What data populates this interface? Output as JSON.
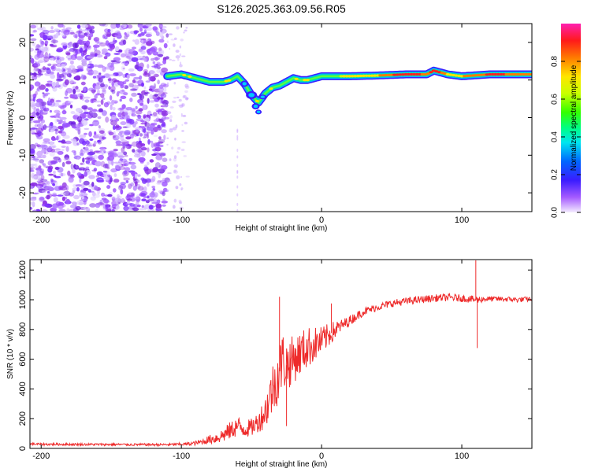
{
  "title": "S126.2025.363.09.56.R05",
  "chart_data": [
    {
      "type": "heatmap",
      "name": "spectrogram",
      "xlabel": "Height of straight line (km)",
      "ylabel": "Frequency (Hz)",
      "xlim": [
        -208,
        150
      ],
      "ylim": [
        -25,
        25
      ],
      "xticks": [
        -200,
        -100,
        0,
        100
      ],
      "yticks": [
        -20,
        -10,
        0,
        10,
        20
      ],
      "noise_region_x": [
        -208,
        -110
      ],
      "sparse_noise_x": [
        -110,
        -95
      ],
      "tone_ridge": {
        "x": [
          -110,
          -100,
          -95,
          -90,
          -85,
          -80,
          -75,
          -70,
          -65,
          -60,
          -55,
          -50,
          -45,
          -40,
          -35,
          -30,
          -25,
          -20,
          -15,
          -10,
          -5,
          0,
          20,
          40,
          60,
          75,
          80,
          90,
          100,
          120,
          150
        ],
        "freq": [
          11,
          11.5,
          11,
          10.5,
          10,
          9.5,
          9.5,
          9.5,
          10,
          11,
          9,
          6,
          4,
          6.5,
          8,
          8.5,
          9.5,
          10.5,
          10,
          10,
          10.5,
          11,
          11,
          11.2,
          11.5,
          11.5,
          12.5,
          11.5,
          11,
          11.5,
          11.5
        ],
        "amplitude": [
          0.2,
          0.35,
          0.3,
          0.3,
          0.3,
          0.25,
          0.35,
          0.3,
          0.25,
          0.3,
          0.35,
          0.3,
          0.3,
          0.35,
          0.35,
          0.4,
          0.45,
          0.45,
          0.45,
          0.45,
          0.5,
          0.55,
          0.75,
          0.8,
          0.95,
          0.85,
          0.95,
          0.8,
          0.8,
          0.9,
          0.85
        ]
      }
    },
    {
      "type": "line",
      "name": "snr",
      "xlabel": "Height of straight line (km)",
      "ylabel": "SNR (10 * v/v)",
      "xlim": [
        -208,
        150
      ],
      "ylim": [
        0,
        1270
      ],
      "xticks": [
        -200,
        -100,
        0,
        100
      ],
      "yticks": [
        0,
        200,
        400,
        600,
        800,
        1000,
        1200
      ],
      "color": "#ee2b2b",
      "series": [
        {
          "name": "SNR",
          "x": [
            -208,
            -200,
            -150,
            -110,
            -100,
            -95,
            -90,
            -85,
            -80,
            -75,
            -70,
            -65,
            -60,
            -55,
            -50,
            -45,
            -40,
            -35,
            -30,
            -28,
            -25,
            -20,
            -15,
            -10,
            -5,
            0,
            5,
            10,
            15,
            20,
            25,
            30,
            40,
            50,
            60,
            70,
            80,
            90,
            100,
            105,
            110,
            112,
            115,
            120,
            130,
            140,
            150
          ],
          "y": [
            30,
            28,
            26,
            25,
            28,
            30,
            35,
            45,
            60,
            70,
            90,
            120,
            150,
            130,
            140,
            180,
            250,
            400,
            520,
            600,
            560,
            600,
            640,
            680,
            700,
            720,
            760,
            800,
            830,
            860,
            890,
            920,
            950,
            975,
            990,
            1000,
            1010,
            1015,
            1010,
            1005,
            1000,
            1000,
            1005,
            1005,
            1005,
            1000,
            1005
          ],
          "noise": [
            8,
            8,
            8,
            8,
            10,
            12,
            15,
            20,
            30,
            40,
            50,
            60,
            70,
            60,
            60,
            70,
            120,
            180,
            200,
            200,
            180,
            160,
            150,
            140,
            120,
            100,
            80,
            60,
            40,
            35,
            30,
            28,
            25,
            25,
            25,
            25,
            25,
            25,
            25,
            25,
            25,
            25,
            20,
            18,
            18,
            18,
            18
          ],
          "spikes": [
            {
              "x": -30,
              "y": 1020
            },
            {
              "x": -25,
              "y": 150
            },
            {
              "x": 7,
              "y": 975
            },
            {
              "x": 110,
              "y": 1265
            },
            {
              "x": 111,
              "y": 675
            }
          ]
        }
      ]
    },
    {
      "type": "colorbar",
      "name": "amplitude-colorbar",
      "label": "Normalized spectral amplitude",
      "range": [
        0,
        1
      ],
      "ticks": [
        0.0,
        0.2,
        0.4,
        0.6,
        0.8
      ],
      "tick_labels": [
        "0.0",
        "0.2",
        "0.4",
        "0.6",
        "0.8"
      ]
    }
  ]
}
